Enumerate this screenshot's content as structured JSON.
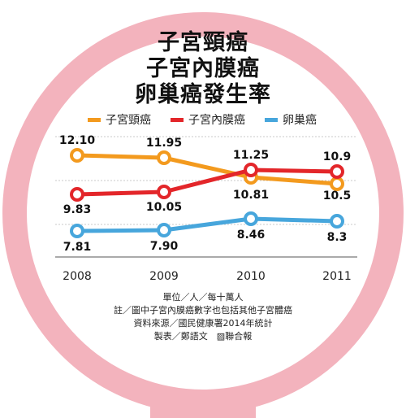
{
  "colors": {
    "ring": "#f3b3bd",
    "cervical": "#f39a1e",
    "endometrial": "#e3262a",
    "ovarian": "#47a6dc",
    "grid": "#c9c9c9"
  },
  "titles": {
    "line1": "子宮頸癌",
    "line2": "子宮內膜癌",
    "line3": "卵巢癌發生率"
  },
  "chart_data": {
    "type": "line",
    "categories": [
      "2008",
      "2009",
      "2010",
      "2011"
    ],
    "series": [
      {
        "name": "子宮頸癌",
        "values": [
          12.1,
          11.95,
          10.81,
          10.5
        ],
        "labels": [
          "12.10",
          "11.95",
          "10.81",
          "10.5"
        ]
      },
      {
        "name": "子宮內膜癌",
        "values": [
          9.83,
          10.05,
          11.25,
          10.9
        ],
        "labels": [
          "9.83",
          "10.05",
          "11.25",
          "10.9"
        ]
      },
      {
        "name": "卵巢癌",
        "values": [
          7.81,
          7.9,
          8.46,
          8.3
        ],
        "labels": [
          "7.81",
          "7.90",
          "8.46",
          "8.3"
        ]
      }
    ],
    "legend_position": "top",
    "grid": true
  },
  "notes": {
    "unit": "單位／人／每十萬人",
    "note": "註／圖中子宮內膜癌數字也包括其他子宮體癌",
    "source": "資料來源／國民健康署2014年統計",
    "credit": "製表／鄭語文　▨聯合報"
  }
}
